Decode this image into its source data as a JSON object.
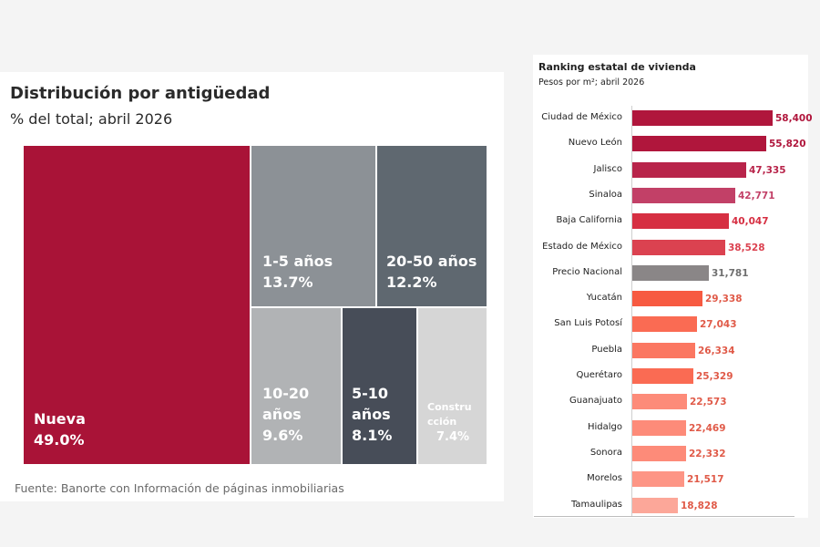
{
  "left_chart": {
    "title": "Distribución por antigüedad",
    "subtitle": "% del total; abril 2026",
    "source": "Fuente: Banorte con Información de páginas inmobiliarias"
  },
  "right_chart": {
    "title": "Ranking estatal de vivienda",
    "subtitle": "Pesos por m²; abril 2026"
  },
  "chart_data": [
    {
      "type": "treemap",
      "title": "Distribución por antigüedad",
      "subtitle": "% del total; abril 2026",
      "unit": "%",
      "items": [
        {
          "name": "Nueva",
          "value": 49.0,
          "value_label": "49.0%",
          "color": "#a91337"
        },
        {
          "name": "1-5 años",
          "value": 13.7,
          "value_label": "13.7%",
          "color": "#8c9196"
        },
        {
          "name": "20-50 años",
          "value": 12.2,
          "value_label": "12.2%",
          "color": "#5f6870"
        },
        {
          "name": "10-20 años",
          "value": 9.6,
          "value_label": "9.6%",
          "color": "#b1b3b5"
        },
        {
          "name": "5-10 años",
          "value": 8.1,
          "value_label": "8.1%",
          "color": "#474d58"
        },
        {
          "name": "Construcción",
          "value": 7.4,
          "value_label": "7.4%",
          "color": "#d6d6d6"
        }
      ]
    },
    {
      "type": "bar",
      "orientation": "horizontal",
      "title": "Ranking estatal de vivienda",
      "subtitle": "Pesos por m²; abril 2026",
      "categories": [
        "Ciudad de México",
        "Nuevo León",
        "Jalisco",
        "Sinaloa",
        "Baja California",
        "Estado de México",
        "Precio Nacional",
        "Yucatán",
        "San Luis Potosí",
        "Puebla",
        "Querétaro",
        "Guanajuato",
        "Hidalgo",
        "Sonora",
        "Morelos",
        "Tamaulipas"
      ],
      "values": [
        58400,
        55820,
        47335,
        42771,
        40047,
        38528,
        31781,
        29338,
        27043,
        26334,
        25329,
        22573,
        22469,
        22332,
        21517,
        18828
      ],
      "value_labels": [
        "58,400",
        "55,820",
        "47,335",
        "42,771",
        "40,047",
        "38,528",
        "31,781",
        "29,338",
        "27,043",
        "26,334",
        "25,329",
        "22,573",
        "22,469",
        "22,332",
        "21,517",
        "18,828"
      ],
      "colors": [
        "#b0163c",
        "#b0163c",
        "#b8244a",
        "#c24067",
        "#d62f42",
        "#db4250",
        "#8a8687",
        "#f75a41",
        "#fa6b53",
        "#fb7761",
        "#fa6b53",
        "#fd8b79",
        "#fd8b79",
        "#fd8b79",
        "#fd9585",
        "#fca799"
      ],
      "label_colors": [
        "#b0163c",
        "#b0163c",
        "#b8244a",
        "#c24067",
        "#d62f42",
        "#db4250",
        "#6f6f6f",
        "#e05a48",
        "#e05a48",
        "#e05a48",
        "#e05a48",
        "#e05a48",
        "#e05a48",
        "#e05a48",
        "#e05a48",
        "#e05a48"
      ],
      "xlim": [
        0,
        60000
      ],
      "grid": false,
      "legend": "none"
    }
  ]
}
